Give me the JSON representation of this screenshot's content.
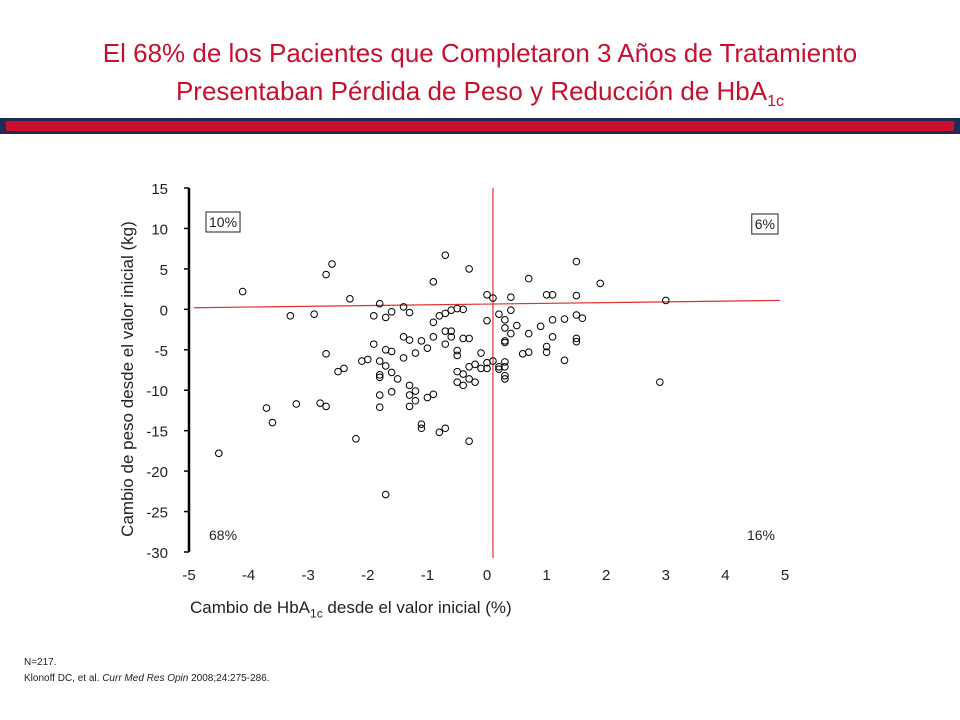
{
  "slide": {
    "title_line1": "El 68% de los Pacientes que Completaron 3 Años de Tratamiento",
    "title_line2_main": "Presentaban Pérdida de Peso y Reducción de HbA",
    "title_line2_sub": "1c",
    "footnote_n": "N=217.",
    "citation_authors": "Klonoff  DC, et al. ",
    "citation_journal": "Curr Med Res Opin",
    "citation_rest": " 2008;24:275-286."
  },
  "colors": {
    "title": "#c8102e",
    "band_dark": "#1f2a55",
    "band_red": "#c8102e",
    "reference_lines": "#e03030",
    "points": "#000000"
  },
  "chart_data": {
    "type": "scatter",
    "xlabel_main": "Cambio de HbA",
    "xlabel_sub": "1c",
    "xlabel_rest": " desde el valor inicial (%)",
    "ylabel": "Cambio de peso desde el valor inicial (kg)",
    "xlim": [
      -5,
      5
    ],
    "ylim": [
      -30,
      15
    ],
    "xticks": [
      "-5",
      "-4",
      "-3",
      "-2",
      "-1",
      "0",
      "1",
      "2",
      "3",
      "4",
      "5"
    ],
    "yticks": [
      "15",
      "10",
      "5",
      "0",
      "-5",
      "-10",
      "-15",
      "-20",
      "-25",
      "-30"
    ],
    "grid": false,
    "quadrant_labels": {
      "top_left": "10%",
      "top_right": "6%",
      "bottom_left": "68%",
      "bottom_right": "16%"
    },
    "reference_lines": {
      "vertical_x": 0.1,
      "trend_start": [
        -5,
        0.2
      ],
      "trend_end": [
        5,
        1.1
      ]
    },
    "points": [
      [
        -4.5,
        -17.8
      ],
      [
        -4.1,
        2.2
      ],
      [
        -3.7,
        -12.2
      ],
      [
        -3.6,
        -14.0
      ],
      [
        -3.3,
        -0.8
      ],
      [
        -3.2,
        -11.7
      ],
      [
        -2.9,
        -0.6
      ],
      [
        -2.8,
        -11.6
      ],
      [
        -2.7,
        -12.0
      ],
      [
        -2.7,
        4.3
      ],
      [
        -2.7,
        -5.5
      ],
      [
        -2.6,
        5.6
      ],
      [
        -2.5,
        -7.7
      ],
      [
        -2.4,
        -7.3
      ],
      [
        -2.3,
        1.3
      ],
      [
        -2.2,
        -16.0
      ],
      [
        -2.1,
        -6.4
      ],
      [
        -2.0,
        -6.2
      ],
      [
        -1.9,
        -0.8
      ],
      [
        -1.9,
        -4.3
      ],
      [
        -1.8,
        0.7
      ],
      [
        -1.8,
        -6.4
      ],
      [
        -1.8,
        -8.1
      ],
      [
        -1.8,
        -8.4
      ],
      [
        -1.8,
        -10.6
      ],
      [
        -1.8,
        -12.1
      ],
      [
        -1.7,
        -22.9
      ],
      [
        -1.7,
        -1.0
      ],
      [
        -1.7,
        -5.0
      ],
      [
        -1.7,
        -7.0
      ],
      [
        -1.6,
        -0.3
      ],
      [
        -1.6,
        -5.2
      ],
      [
        -1.6,
        -7.8
      ],
      [
        -1.6,
        -10.2
      ],
      [
        -1.5,
        -8.6
      ],
      [
        -1.4,
        0.3
      ],
      [
        -1.4,
        -3.4
      ],
      [
        -1.4,
        -6.0
      ],
      [
        -1.3,
        -0.4
      ],
      [
        -1.3,
        -3.8
      ],
      [
        -1.3,
        -9.4
      ],
      [
        -1.3,
        -10.6
      ],
      [
        -1.3,
        -12.0
      ],
      [
        -1.2,
        -5.4
      ],
      [
        -1.2,
        -10.1
      ],
      [
        -1.2,
        -11.3
      ],
      [
        -1.1,
        -3.9
      ],
      [
        -1.1,
        -14.2
      ],
      [
        -1.1,
        -14.7
      ],
      [
        -1.0,
        -4.8
      ],
      [
        -1.0,
        -10.9
      ],
      [
        -0.9,
        3.4
      ],
      [
        -0.9,
        -1.6
      ],
      [
        -0.9,
        -3.4
      ],
      [
        -0.9,
        -10.5
      ],
      [
        -0.8,
        -0.8
      ],
      [
        -0.8,
        -15.2
      ],
      [
        -0.7,
        6.7
      ],
      [
        -0.7,
        -0.5
      ],
      [
        -0.7,
        -2.7
      ],
      [
        -0.7,
        -4.3
      ],
      [
        -0.7,
        -14.7
      ],
      [
        -0.6,
        -0.1
      ],
      [
        -0.6,
        -2.7
      ],
      [
        -0.6,
        -3.4
      ],
      [
        -0.5,
        0.1
      ],
      [
        -0.5,
        -5.1
      ],
      [
        -0.5,
        -5.7
      ],
      [
        -0.5,
        -7.7
      ],
      [
        -0.5,
        -9.0
      ],
      [
        -0.4,
        0.0
      ],
      [
        -0.4,
        -3.6
      ],
      [
        -0.4,
        -8.0
      ],
      [
        -0.4,
        -9.4
      ],
      [
        -0.3,
        -3.6
      ],
      [
        -0.3,
        -7.1
      ],
      [
        -0.3,
        -8.6
      ],
      [
        -0.3,
        5.0
      ],
      [
        -0.3,
        -16.3
      ],
      [
        -0.2,
        -6.8
      ],
      [
        -0.2,
        -9.0
      ],
      [
        -0.1,
        -5.4
      ],
      [
        -0.1,
        -7.3
      ],
      [
        0.0,
        1.8
      ],
      [
        0.0,
        -1.4
      ],
      [
        0.0,
        -6.6
      ],
      [
        0.0,
        -7.3
      ],
      [
        0.1,
        1.4
      ],
      [
        0.1,
        -6.4
      ],
      [
        0.2,
        -0.6
      ],
      [
        0.2,
        -7.1
      ],
      [
        0.2,
        -7.4
      ],
      [
        0.3,
        -1.3
      ],
      [
        0.3,
        -2.3
      ],
      [
        0.3,
        -3.9
      ],
      [
        0.3,
        -4.1
      ],
      [
        0.3,
        -6.5
      ],
      [
        0.3,
        -7.1
      ],
      [
        0.3,
        -8.2
      ],
      [
        0.3,
        -8.6
      ],
      [
        0.4,
        1.5
      ],
      [
        0.4,
        -0.1
      ],
      [
        0.4,
        -3.0
      ],
      [
        0.5,
        -2.0
      ],
      [
        0.6,
        -5.5
      ],
      [
        0.7,
        3.8
      ],
      [
        0.7,
        -3.0
      ],
      [
        0.7,
        -5.3
      ],
      [
        0.9,
        -2.1
      ],
      [
        1.0,
        1.8
      ],
      [
        1.0,
        -4.6
      ],
      [
        1.0,
        -5.3
      ],
      [
        1.1,
        1.8
      ],
      [
        1.1,
        -1.3
      ],
      [
        1.1,
        -3.4
      ],
      [
        1.3,
        -1.2
      ],
      [
        1.3,
        -6.3
      ],
      [
        1.5,
        5.9
      ],
      [
        1.5,
        1.7
      ],
      [
        1.5,
        -0.7
      ],
      [
        1.5,
        -3.6
      ],
      [
        1.5,
        -4.0
      ],
      [
        1.6,
        -1.1
      ],
      [
        1.9,
        3.2
      ],
      [
        2.9,
        -9.0
      ],
      [
        3.0,
        1.1
      ]
    ]
  }
}
